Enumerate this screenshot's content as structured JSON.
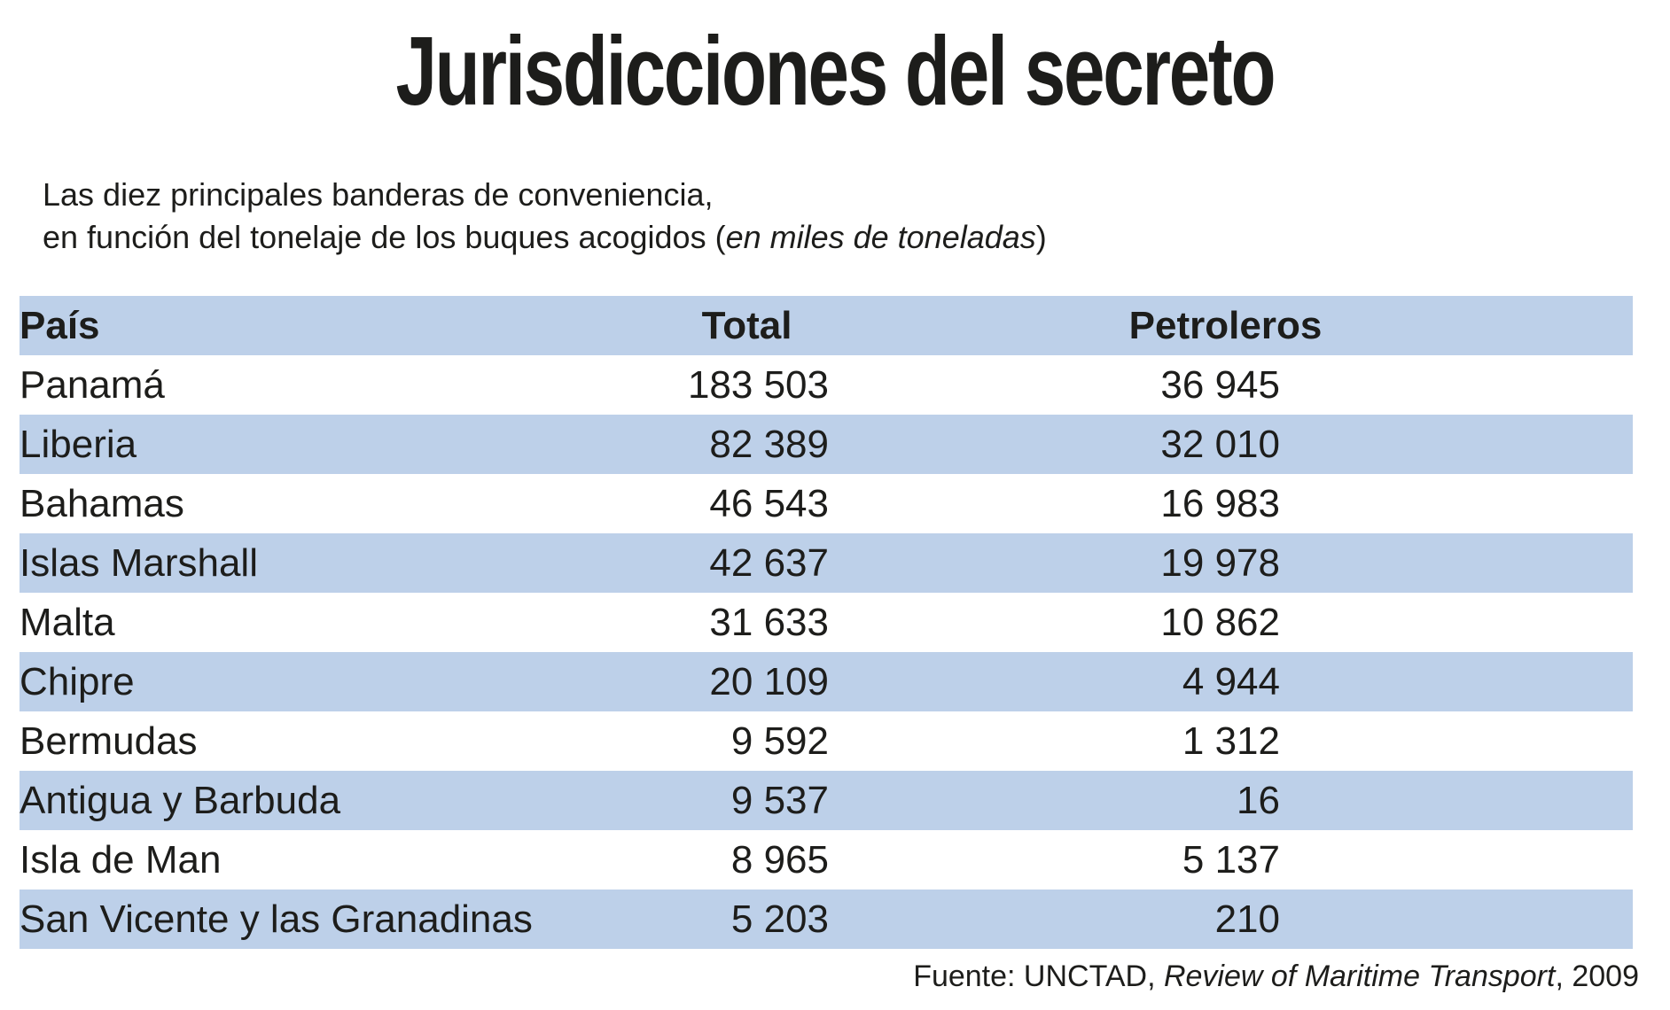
{
  "colors": {
    "band_blue": "#bdd0e9",
    "text": "#1d1d1b",
    "background": "#ffffff"
  },
  "title": "Jurisdicciones del secreto",
  "subtitle": {
    "line1": "Las diez principales banderas de conveniencia,",
    "line2_prefix": "en función del tonelaje de los buques acogidos (",
    "line2_italic": "en miles de toneladas",
    "line2_suffix": ")"
  },
  "table": {
    "headers": [
      "País",
      "Total",
      "Petroleros"
    ],
    "rows": [
      {
        "country": "Panamá",
        "total": "183 503",
        "petroleros": "36 945"
      },
      {
        "country": "Liberia",
        "total": "82 389",
        "petroleros": "32 010"
      },
      {
        "country": "Bahamas",
        "total": "46 543",
        "petroleros": "16 983"
      },
      {
        "country": "Islas Marshall",
        "total": "42 637",
        "petroleros": "19 978"
      },
      {
        "country": "Malta",
        "total": "31 633",
        "petroleros": "10 862"
      },
      {
        "country": "Chipre",
        "total": "20 109",
        "petroleros": "4 944"
      },
      {
        "country": "Bermudas",
        "total": "9 592",
        "petroleros": "1 312"
      },
      {
        "country": "Antigua y Barbuda",
        "total": "9 537",
        "petroleros": "16"
      },
      {
        "country": "Isla de Man",
        "total": "8 965",
        "petroleros": "5 137"
      },
      {
        "country": "San Vicente y las Granadinas",
        "total": "5 203",
        "petroleros": "210"
      }
    ]
  },
  "footer": {
    "prefix": "Fuente: UNCTAD, ",
    "italic": "Review of Maritime Transport",
    "suffix": ", 2009"
  },
  "chart_data": {
    "type": "table",
    "title": "Jurisdicciones del secreto",
    "subtitle": "Las diez principales banderas de conveniencia, en función del tonelaje de los buques acogidos (en miles de toneladas)",
    "columns": [
      "País",
      "Total",
      "Petroleros"
    ],
    "rows": [
      [
        "Panamá",
        183503,
        36945
      ],
      [
        "Liberia",
        82389,
        32010
      ],
      [
        "Bahamas",
        46543,
        16983
      ],
      [
        "Islas Marshall",
        42637,
        19978
      ],
      [
        "Malta",
        31633,
        10862
      ],
      [
        "Chipre",
        20109,
        4944
      ],
      [
        "Bermudas",
        9592,
        1312
      ],
      [
        "Antigua y Barbuda",
        9537,
        16
      ],
      [
        "Isla de Man",
        8965,
        5137
      ],
      [
        "San Vicente y las Granadinas",
        5203,
        210
      ]
    ],
    "units": "miles de toneladas",
    "source": "Fuente: UNCTAD, Review of Maritime Transport, 2009",
    "layout": {
      "banding": "alternating-rows",
      "band_color": "#bdd0e9",
      "numbers_alignment": "right"
    }
  }
}
